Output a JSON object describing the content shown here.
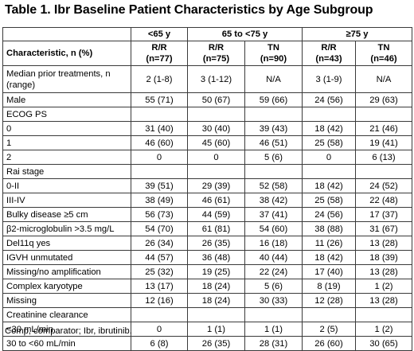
{
  "title": "Table 1. Ibr Baseline Patient Characteristics by Age Subgroup",
  "age_groups": [
    "<65 y",
    "65 to <75 y",
    "≥75 y"
  ],
  "header": {
    "characteristic": "Characteristic, n (%)",
    "columns": [
      {
        "label": "R/R",
        "n": "(n=77)"
      },
      {
        "label": "R/R",
        "n": "(n=75)"
      },
      {
        "label": "TN",
        "n": "(n=90)"
      },
      {
        "label": "R/R",
        "n": "(n=43)"
      },
      {
        "label": "TN",
        "n": "(n=46)"
      }
    ]
  },
  "rows": [
    {
      "label": "Median prior treatments, n (range)",
      "values": [
        "2 (1-8)",
        "3 (1-12)",
        "N/A",
        "3 (1-9)",
        "N/A"
      ]
    },
    {
      "label": "Male",
      "values": [
        "55 (71)",
        "50 (67)",
        "59 (66)",
        "24 (56)",
        "29 (63)"
      ]
    },
    {
      "label": "ECOG PS",
      "values": [
        "",
        "",
        "",
        "",
        ""
      ]
    },
    {
      "label": "0",
      "values": [
        "31 (40)",
        "30 (40)",
        "39 (43)",
        "18 (42)",
        "21 (46)"
      ]
    },
    {
      "label": "1",
      "values": [
        "46 (60)",
        "45 (60)",
        "46 (51)",
        "25 (58)",
        "19 (41)"
      ]
    },
    {
      "label": "2",
      "values": [
        "0",
        "0",
        "5 (6)",
        "0",
        "6 (13)"
      ]
    },
    {
      "label": "Rai stage",
      "values": [
        "",
        "",
        "",
        "",
        ""
      ]
    },
    {
      "label": "0-II",
      "values": [
        "39 (51)",
        "29 (39)",
        "52 (58)",
        "18 (42)",
        "24 (52)"
      ]
    },
    {
      "label": "III-IV",
      "values": [
        "38 (49)",
        "46 (61)",
        "38 (42)",
        "25 (58)",
        "22 (48)"
      ]
    },
    {
      "label": "Bulky disease ≥5 cm",
      "values": [
        "56 (73)",
        "44 (59)",
        "37 (41)",
        "24 (56)",
        "17 (37)"
      ]
    },
    {
      "label": "β2-microglobulin >3.5 mg/L",
      "values": [
        "54 (70)",
        "61 (81)",
        "54 (60)",
        "38 (88)",
        "31 (67)"
      ]
    },
    {
      "label": "Del11q yes",
      "values": [
        "26 (34)",
        "26 (35)",
        "16 (18)",
        "11 (26)",
        "13 (28)"
      ]
    },
    {
      "label": "IGVH unmutated",
      "values": [
        "44 (57)",
        "36 (48)",
        "40 (44)",
        "18 (42)",
        "18 (39)"
      ]
    },
    {
      "label": "Missing/no amplification",
      "values": [
        "25 (32)",
        "19 (25)",
        "22 (24)",
        "17 (40)",
        "13 (28)"
      ]
    },
    {
      "label": "Complex karyotype",
      "values": [
        "13 (17)",
        "18 (24)",
        "5 (6)",
        "8 (19)",
        "1 (2)"
      ]
    },
    {
      "label": "Missing",
      "values": [
        "12 (16)",
        "18 (24)",
        "30 (33)",
        "12 (28)",
        "13 (28)"
      ]
    },
    {
      "label": "Creatinine clearance",
      "values": [
        "",
        "",
        "",
        "",
        ""
      ]
    },
    {
      "label": "<30 mL/min",
      "values": [
        "0",
        "1 (1)",
        "1 (1)",
        "2 (5)",
        "1 (2)"
      ]
    },
    {
      "label": "30 to <60 mL/min",
      "values": [
        "6 (8)",
        "26 (35)",
        "28 (31)",
        "26 (60)",
        "30 (65)"
      ]
    }
  ],
  "footnote": "Comp, comparator; Ibr, ibrutinib."
}
